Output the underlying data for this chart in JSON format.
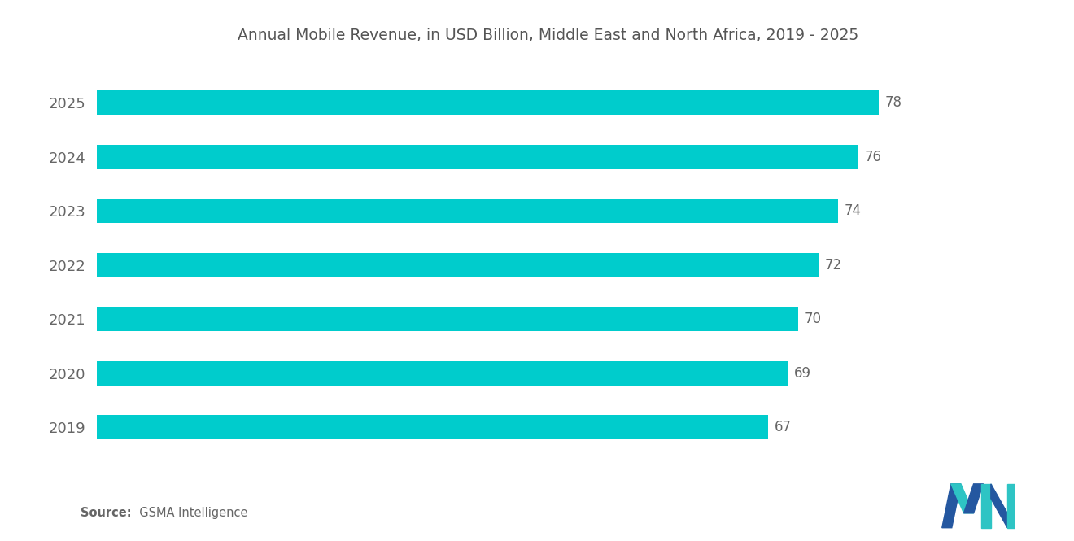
{
  "title": "Annual Mobile Revenue, in USD Billion, Middle East and North Africa, 2019 - 2025",
  "years": [
    "2019",
    "2020",
    "2021",
    "2022",
    "2023",
    "2024",
    "2025"
  ],
  "values": [
    67,
    69,
    70,
    72,
    74,
    76,
    78
  ],
  "bar_color": "#00CCCC",
  "background_color": "#ffffff",
  "title_fontsize": 13.5,
  "label_fontsize": 13,
  "value_fontsize": 12,
  "source_bold": "Source:",
  "source_normal": "  GSMA Intelligence",
  "xlim": [
    0,
    90
  ],
  "bar_height": 0.45
}
